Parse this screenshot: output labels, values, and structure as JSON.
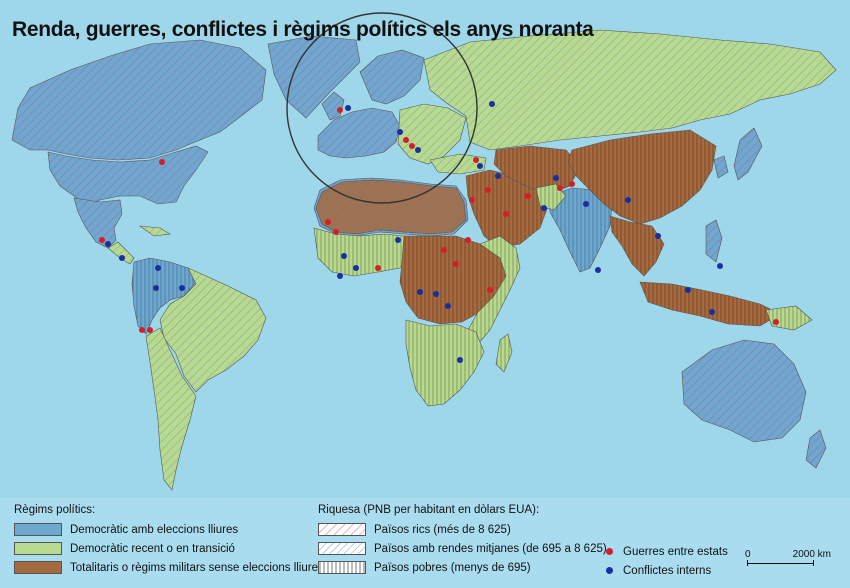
{
  "map": {
    "title": "Renda, guerres, conflictes i règims polítics els anys noranta",
    "colors": {
      "ocean": "#9fd7ea",
      "democratic": "#6fa8cf",
      "transition": "#b8d98e",
      "totalitarian": "#a56a3f",
      "border": "#555555",
      "war": "#d1202a",
      "conflict": "#1a2fa0"
    }
  },
  "legend_regimes": {
    "heading": "Règims polítics:",
    "items": [
      {
        "label": "Democràtic amb eleccions lliures",
        "color": "#6fa8cf"
      },
      {
        "label": "Democràtic recent o en transició",
        "color": "#b8d98e"
      },
      {
        "label": "Totalitaris o règims militars sense eleccions lliures",
        "color": "#a56a3f"
      }
    ]
  },
  "legend_wealth": {
    "heading": "Riquesa (PNB per habitant en dòlars EUA):",
    "items": [
      {
        "label": "Països rics (més de 8 625)",
        "pattern": "diagonal-hatch-rich"
      },
      {
        "label": "Països amb rendes mitjanes (de 695 a 8 625)",
        "pattern": "diagonal-hatch-medium"
      },
      {
        "label": "Països pobres (menys de 695)",
        "pattern": "vertical-hatch-poor"
      }
    ]
  },
  "legend_events": {
    "items": [
      {
        "label": "Guerres entre estats",
        "color": "#d1202a"
      },
      {
        "label": "Conflictes interns",
        "color": "#1a2fa0"
      }
    ]
  },
  "scale": {
    "min": "0",
    "max": "2000 km"
  }
}
